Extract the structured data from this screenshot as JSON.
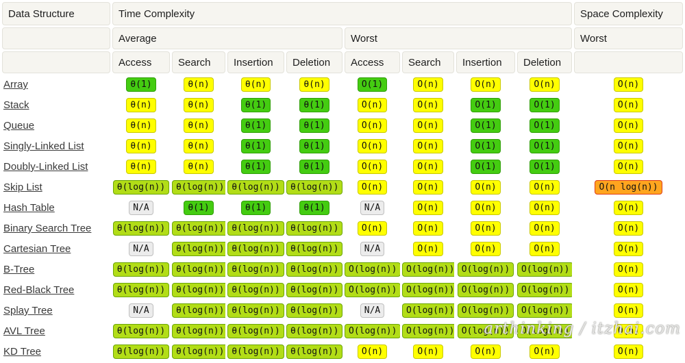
{
  "header": {
    "col_data_structure": "Data Structure",
    "col_time_complexity": "Time Complexity",
    "col_space_complexity": "Space Complexity",
    "group_average": "Average",
    "group_worst": "Worst",
    "space_worst": "Worst",
    "ops": [
      "Access",
      "Search",
      "Insertion",
      "Deletion"
    ]
  },
  "colors": {
    "excellent_green": "#44cc11",
    "good_yellowgreen": "#b2dd17",
    "fair_yellow": "#ffff00",
    "bad_orange": "#ffa51f",
    "na_grey": "#ececec",
    "orange_border_red": "#dd3b15"
  },
  "rows": [
    {
      "name": "Array",
      "average": [
        {
          "t": "θ(1)",
          "c": "green"
        },
        {
          "t": "θ(n)",
          "c": "yellow"
        },
        {
          "t": "θ(n)",
          "c": "yellow"
        },
        {
          "t": "θ(n)",
          "c": "yellow"
        }
      ],
      "worst": [
        {
          "t": "O(1)",
          "c": "green"
        },
        {
          "t": "O(n)",
          "c": "yellow"
        },
        {
          "t": "O(n)",
          "c": "yellow"
        },
        {
          "t": "O(n)",
          "c": "yellow"
        }
      ],
      "space": {
        "t": "O(n)",
        "c": "yellow"
      }
    },
    {
      "name": "Stack",
      "average": [
        {
          "t": "θ(n)",
          "c": "yellow"
        },
        {
          "t": "θ(n)",
          "c": "yellow"
        },
        {
          "t": "θ(1)",
          "c": "green"
        },
        {
          "t": "θ(1)",
          "c": "green"
        }
      ],
      "worst": [
        {
          "t": "O(n)",
          "c": "yellow"
        },
        {
          "t": "O(n)",
          "c": "yellow"
        },
        {
          "t": "O(1)",
          "c": "green"
        },
        {
          "t": "O(1)",
          "c": "green"
        }
      ],
      "space": {
        "t": "O(n)",
        "c": "yellow"
      }
    },
    {
      "name": "Queue",
      "average": [
        {
          "t": "θ(n)",
          "c": "yellow"
        },
        {
          "t": "θ(n)",
          "c": "yellow"
        },
        {
          "t": "θ(1)",
          "c": "green"
        },
        {
          "t": "θ(1)",
          "c": "green"
        }
      ],
      "worst": [
        {
          "t": "O(n)",
          "c": "yellow"
        },
        {
          "t": "O(n)",
          "c": "yellow"
        },
        {
          "t": "O(1)",
          "c": "green"
        },
        {
          "t": "O(1)",
          "c": "green"
        }
      ],
      "space": {
        "t": "O(n)",
        "c": "yellow"
      }
    },
    {
      "name": "Singly-Linked List",
      "average": [
        {
          "t": "θ(n)",
          "c": "yellow"
        },
        {
          "t": "θ(n)",
          "c": "yellow"
        },
        {
          "t": "θ(1)",
          "c": "green"
        },
        {
          "t": "θ(1)",
          "c": "green"
        }
      ],
      "worst": [
        {
          "t": "O(n)",
          "c": "yellow"
        },
        {
          "t": "O(n)",
          "c": "yellow"
        },
        {
          "t": "O(1)",
          "c": "green"
        },
        {
          "t": "O(1)",
          "c": "green"
        }
      ],
      "space": {
        "t": "O(n)",
        "c": "yellow"
      }
    },
    {
      "name": "Doubly-Linked List",
      "average": [
        {
          "t": "θ(n)",
          "c": "yellow"
        },
        {
          "t": "θ(n)",
          "c": "yellow"
        },
        {
          "t": "θ(1)",
          "c": "green"
        },
        {
          "t": "θ(1)",
          "c": "green"
        }
      ],
      "worst": [
        {
          "t": "O(n)",
          "c": "yellow"
        },
        {
          "t": "O(n)",
          "c": "yellow"
        },
        {
          "t": "O(1)",
          "c": "green"
        },
        {
          "t": "O(1)",
          "c": "green"
        }
      ],
      "space": {
        "t": "O(n)",
        "c": "yellow"
      }
    },
    {
      "name": "Skip List",
      "average": [
        {
          "t": "θ(log(n))",
          "c": "yg"
        },
        {
          "t": "θ(log(n))",
          "c": "yg"
        },
        {
          "t": "θ(log(n))",
          "c": "yg"
        },
        {
          "t": "θ(log(n))",
          "c": "yg"
        }
      ],
      "worst": [
        {
          "t": "O(n)",
          "c": "yellow"
        },
        {
          "t": "O(n)",
          "c": "yellow"
        },
        {
          "t": "O(n)",
          "c": "yellow"
        },
        {
          "t": "O(n)",
          "c": "yellow"
        }
      ],
      "space": {
        "t": "O(n log(n))",
        "c": "orange"
      }
    },
    {
      "name": "Hash Table",
      "average": [
        {
          "t": "N/A",
          "c": "grey"
        },
        {
          "t": "θ(1)",
          "c": "green"
        },
        {
          "t": "θ(1)",
          "c": "green"
        },
        {
          "t": "θ(1)",
          "c": "green"
        }
      ],
      "worst": [
        {
          "t": "N/A",
          "c": "grey"
        },
        {
          "t": "O(n)",
          "c": "yellow"
        },
        {
          "t": "O(n)",
          "c": "yellow"
        },
        {
          "t": "O(n)",
          "c": "yellow"
        }
      ],
      "space": {
        "t": "O(n)",
        "c": "yellow"
      }
    },
    {
      "name": "Binary Search Tree",
      "average": [
        {
          "t": "θ(log(n))",
          "c": "yg"
        },
        {
          "t": "θ(log(n))",
          "c": "yg"
        },
        {
          "t": "θ(log(n))",
          "c": "yg"
        },
        {
          "t": "θ(log(n))",
          "c": "yg"
        }
      ],
      "worst": [
        {
          "t": "O(n)",
          "c": "yellow"
        },
        {
          "t": "O(n)",
          "c": "yellow"
        },
        {
          "t": "O(n)",
          "c": "yellow"
        },
        {
          "t": "O(n)",
          "c": "yellow"
        }
      ],
      "space": {
        "t": "O(n)",
        "c": "yellow"
      }
    },
    {
      "name": "Cartesian Tree",
      "average": [
        {
          "t": "N/A",
          "c": "grey"
        },
        {
          "t": "θ(log(n))",
          "c": "yg"
        },
        {
          "t": "θ(log(n))",
          "c": "yg"
        },
        {
          "t": "θ(log(n))",
          "c": "yg"
        }
      ],
      "worst": [
        {
          "t": "N/A",
          "c": "grey"
        },
        {
          "t": "O(n)",
          "c": "yellow"
        },
        {
          "t": "O(n)",
          "c": "yellow"
        },
        {
          "t": "O(n)",
          "c": "yellow"
        }
      ],
      "space": {
        "t": "O(n)",
        "c": "yellow"
      }
    },
    {
      "name": "B-Tree",
      "average": [
        {
          "t": "θ(log(n))",
          "c": "yg"
        },
        {
          "t": "θ(log(n))",
          "c": "yg"
        },
        {
          "t": "θ(log(n))",
          "c": "yg"
        },
        {
          "t": "θ(log(n))",
          "c": "yg"
        }
      ],
      "worst": [
        {
          "t": "O(log(n))",
          "c": "yg"
        },
        {
          "t": "O(log(n))",
          "c": "yg"
        },
        {
          "t": "O(log(n))",
          "c": "yg"
        },
        {
          "t": "O(log(n))",
          "c": "yg"
        }
      ],
      "space": {
        "t": "O(n)",
        "c": "yellow"
      }
    },
    {
      "name": "Red-Black Tree",
      "average": [
        {
          "t": "θ(log(n))",
          "c": "yg"
        },
        {
          "t": "θ(log(n))",
          "c": "yg"
        },
        {
          "t": "θ(log(n))",
          "c": "yg"
        },
        {
          "t": "θ(log(n))",
          "c": "yg"
        }
      ],
      "worst": [
        {
          "t": "O(log(n))",
          "c": "yg"
        },
        {
          "t": "O(log(n))",
          "c": "yg"
        },
        {
          "t": "O(log(n))",
          "c": "yg"
        },
        {
          "t": "O(log(n))",
          "c": "yg"
        }
      ],
      "space": {
        "t": "O(n)",
        "c": "yellow"
      }
    },
    {
      "name": "Splay Tree",
      "average": [
        {
          "t": "N/A",
          "c": "grey"
        },
        {
          "t": "θ(log(n))",
          "c": "yg"
        },
        {
          "t": "θ(log(n))",
          "c": "yg"
        },
        {
          "t": "θ(log(n))",
          "c": "yg"
        }
      ],
      "worst": [
        {
          "t": "N/A",
          "c": "grey"
        },
        {
          "t": "O(log(n))",
          "c": "yg"
        },
        {
          "t": "O(log(n))",
          "c": "yg"
        },
        {
          "t": "O(log(n))",
          "c": "yg"
        }
      ],
      "space": {
        "t": "O(n)",
        "c": "yellow"
      }
    },
    {
      "name": "AVL Tree",
      "average": [
        {
          "t": "θ(log(n))",
          "c": "yg"
        },
        {
          "t": "θ(log(n))",
          "c": "yg"
        },
        {
          "t": "θ(log(n))",
          "c": "yg"
        },
        {
          "t": "θ(log(n))",
          "c": "yg"
        }
      ],
      "worst": [
        {
          "t": "O(log(n))",
          "c": "yg"
        },
        {
          "t": "O(log(n))",
          "c": "yg"
        },
        {
          "t": "O(log(n))",
          "c": "yg"
        },
        {
          "t": "O(log(n))",
          "c": "yg"
        }
      ],
      "space": {
        "t": "O(n)",
        "c": "yellow"
      }
    },
    {
      "name": "KD Tree",
      "average": [
        {
          "t": "θ(log(n))",
          "c": "yg"
        },
        {
          "t": "θ(log(n))",
          "c": "yg"
        },
        {
          "t": "θ(log(n))",
          "c": "yg"
        },
        {
          "t": "θ(log(n))",
          "c": "yg"
        }
      ],
      "worst": [
        {
          "t": "O(n)",
          "c": "yellow"
        },
        {
          "t": "O(n)",
          "c": "yellow"
        },
        {
          "t": "O(n)",
          "c": "yellow"
        },
        {
          "t": "O(n)",
          "c": "yellow"
        }
      ],
      "space": {
        "t": "O(n)",
        "c": "yellow"
      }
    }
  ],
  "watermark": "arthinking / itzhai.com"
}
